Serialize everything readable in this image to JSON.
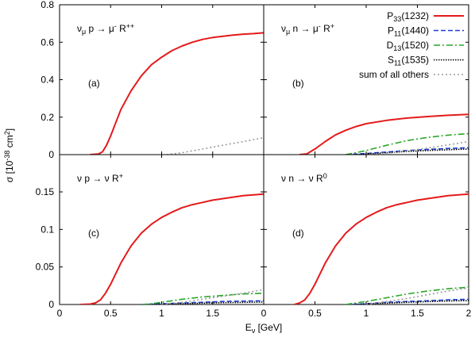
{
  "chart_data": [
    {
      "type": "line",
      "panel": "(a)",
      "reaction": {
        "base": "ν",
        "base_sub": "μ",
        "mid": " p → μ",
        "mid_sup": "-",
        "end": " R",
        "end_sup": "++"
      },
      "xlim": [
        0,
        2
      ],
      "ylim": [
        0,
        0.8
      ],
      "yticks": [
        "0",
        "0.2",
        "0.4",
        "0.6",
        "0.8"
      ],
      "series": [
        {
          "name": "P33(1232)",
          "x": [
            0.3,
            0.38,
            0.42,
            0.46,
            0.5,
            0.55,
            0.6,
            0.7,
            0.8,
            0.9,
            1.0,
            1.1,
            1.2,
            1.3,
            1.4,
            1.5,
            1.6,
            1.7,
            1.8,
            1.9,
            2.0
          ],
          "y": [
            0.0,
            0.003,
            0.015,
            0.05,
            0.1,
            0.17,
            0.24,
            0.34,
            0.42,
            0.48,
            0.52,
            0.555,
            0.58,
            0.6,
            0.615,
            0.625,
            0.632,
            0.638,
            0.643,
            0.646,
            0.65
          ]
        },
        {
          "name": "sum of all others",
          "x": [
            1.05,
            1.2,
            1.4,
            1.6,
            1.8,
            2.0
          ],
          "y": [
            0.0,
            0.01,
            0.03,
            0.05,
            0.07,
            0.09
          ]
        }
      ]
    },
    {
      "type": "line",
      "panel": "(b)",
      "reaction": {
        "base": "ν",
        "base_sub": "μ",
        "mid": " n → μ",
        "mid_sup": "-",
        "end": " R",
        "end_sup": "+"
      },
      "xlim": [
        0,
        2
      ],
      "ylim": [
        0,
        0.8
      ],
      "yticks": [],
      "series": [
        {
          "name": "P33(1232)",
          "x": [
            0.35,
            0.42,
            0.5,
            0.6,
            0.7,
            0.8,
            0.9,
            1.0,
            1.2,
            1.4,
            1.6,
            1.8,
            2.0
          ],
          "y": [
            0.0,
            0.004,
            0.03,
            0.07,
            0.105,
            0.13,
            0.15,
            0.165,
            0.183,
            0.195,
            0.203,
            0.21,
            0.215
          ]
        },
        {
          "name": "P11(1440)",
          "x": [
            0.8,
            1.0,
            1.2,
            1.4,
            1.6,
            1.8,
            2.0
          ],
          "y": [
            0.0,
            0.006,
            0.014,
            0.022,
            0.028,
            0.033,
            0.037
          ]
        },
        {
          "name": "D13(1520)",
          "x": [
            0.8,
            0.9,
            1.0,
            1.2,
            1.4,
            1.6,
            1.8,
            2.0
          ],
          "y": [
            0.0,
            0.01,
            0.022,
            0.05,
            0.075,
            0.092,
            0.104,
            0.112
          ]
        },
        {
          "name": "S11(1535)",
          "x": [
            0.9,
            1.0,
            1.2,
            1.4,
            1.6,
            1.8,
            2.0
          ],
          "y": [
            0.0,
            0.004,
            0.01,
            0.017,
            0.022,
            0.026,
            0.03
          ]
        },
        {
          "name": "sum of all others",
          "x": [
            1.0,
            1.2,
            1.4,
            1.6,
            1.8,
            2.0
          ],
          "y": [
            0.0,
            0.008,
            0.02,
            0.035,
            0.052,
            0.07
          ]
        }
      ]
    },
    {
      "type": "line",
      "panel": "(c)",
      "reaction": {
        "base": "ν",
        "base_sub": "",
        "mid": " p → ν",
        "mid_sup": "",
        "end": " R",
        "end_sup": "+"
      },
      "xlim": [
        0,
        2
      ],
      "ylim": [
        0,
        0.18
      ],
      "yticks": [
        "0",
        "0.05",
        "0.1",
        "0.15"
      ],
      "series": [
        {
          "name": "P33(1232)",
          "x": [
            0.2,
            0.3,
            0.35,
            0.4,
            0.45,
            0.5,
            0.6,
            0.7,
            0.8,
            0.9,
            1.0,
            1.1,
            1.2,
            1.3,
            1.4,
            1.5,
            1.6,
            1.7,
            1.8,
            1.9,
            2.0
          ],
          "y": [
            0.0,
            0.0005,
            0.002,
            0.006,
            0.015,
            0.027,
            0.055,
            0.078,
            0.095,
            0.107,
            0.116,
            0.123,
            0.129,
            0.133,
            0.136,
            0.139,
            0.141,
            0.143,
            0.145,
            0.146,
            0.147
          ]
        },
        {
          "name": "P11(1440)",
          "x": [
            0.8,
            1.0,
            1.2,
            1.4,
            1.6,
            1.8,
            2.0
          ],
          "y": [
            0.0,
            0.001,
            0.002,
            0.003,
            0.004,
            0.0045,
            0.005
          ]
        },
        {
          "name": "D13(1520)",
          "x": [
            0.8,
            0.9,
            1.0,
            1.2,
            1.4,
            1.6,
            1.8,
            2.0
          ],
          "y": [
            0.0,
            0.001,
            0.003,
            0.007,
            0.01,
            0.012,
            0.014,
            0.015
          ]
        },
        {
          "name": "S11(1535)",
          "x": [
            0.9,
            1.0,
            1.2,
            1.4,
            1.6,
            1.8,
            2.0
          ],
          "y": [
            0.0,
            0.0005,
            0.001,
            0.0018,
            0.0024,
            0.0029,
            0.0033
          ]
        },
        {
          "name": "sum of all others",
          "x": [
            1.0,
            1.2,
            1.4,
            1.6,
            1.8,
            2.0
          ],
          "y": [
            0.0,
            0.003,
            0.007,
            0.011,
            0.015,
            0.02
          ]
        }
      ]
    },
    {
      "type": "line",
      "panel": "(d)",
      "reaction": {
        "base": "ν",
        "base_sub": "",
        "mid": " n → ν",
        "mid_sup": "",
        "end": " R",
        "end_sup": "0"
      },
      "xlim": [
        0,
        2
      ],
      "ylim": [
        0,
        0.18
      ],
      "yticks": [],
      "series": [
        {
          "name": "P33(1232)",
          "x": [
            0.3,
            0.35,
            0.4,
            0.45,
            0.5,
            0.6,
            0.7,
            0.8,
            0.9,
            1.0,
            1.1,
            1.2,
            1.3,
            1.4,
            1.5,
            1.6,
            1.7,
            1.8,
            1.9,
            2.0
          ],
          "y": [
            0.0,
            0.002,
            0.006,
            0.015,
            0.027,
            0.055,
            0.078,
            0.095,
            0.107,
            0.116,
            0.123,
            0.129,
            0.133,
            0.136,
            0.139,
            0.141,
            0.143,
            0.145,
            0.146,
            0.147
          ]
        },
        {
          "name": "P11(1440)",
          "x": [
            0.8,
            1.0,
            1.2,
            1.4,
            1.6,
            1.8,
            2.0
          ],
          "y": [
            0.0,
            0.001,
            0.003,
            0.004,
            0.005,
            0.0062,
            0.007
          ]
        },
        {
          "name": "D13(1520)",
          "x": [
            0.8,
            0.9,
            1.0,
            1.2,
            1.4,
            1.6,
            1.8,
            2.0
          ],
          "y": [
            0.0,
            0.002,
            0.004,
            0.009,
            0.014,
            0.018,
            0.021,
            0.023
          ]
        },
        {
          "name": "S11(1535)",
          "x": [
            0.9,
            1.0,
            1.2,
            1.4,
            1.6,
            1.8,
            2.0
          ],
          "y": [
            0.0,
            0.0008,
            0.0018,
            0.003,
            0.0038,
            0.0046,
            0.0052
          ]
        },
        {
          "name": "sum of all others",
          "x": [
            1.0,
            1.2,
            1.4,
            1.6,
            1.8,
            2.0
          ],
          "y": [
            0.0,
            0.004,
            0.008,
            0.013,
            0.018,
            0.022
          ]
        }
      ]
    }
  ],
  "xticks": [
    "0",
    "0.5",
    "1",
    "1.5",
    "2"
  ],
  "xlabel": {
    "text": "E",
    "sub": "ν",
    "rest": " [GeV]"
  },
  "ylabel": {
    "text": "σ [10",
    "sup": "-38",
    "rest": " cm",
    "sup2": "2",
    "close": "]"
  },
  "legend": [
    {
      "label": "P",
      "sub": "33",
      "rest": "(1232)",
      "color": "#e41a1c",
      "dash": ""
    },
    {
      "label": "P",
      "sub": "11",
      "rest": "(1440)",
      "color": "#1f3fd0",
      "dash": "6,3"
    },
    {
      "label": "D",
      "sub": "13",
      "rest": "(1520)",
      "color": "#2aa62a",
      "dash": "8,3,2,3"
    },
    {
      "label": "S",
      "sub": "11",
      "rest": "(1535)",
      "color": "#000000",
      "dash": "1.5,1.5"
    },
    {
      "label": "sum of all others",
      "sub": "",
      "rest": "",
      "color": "#9a9a9a",
      "dash": "2,3"
    }
  ],
  "series_style": {
    "P33(1232)": {
      "color": "#e41a1c",
      "dash": ""
    },
    "P11(1440)": {
      "color": "#1f3fd0",
      "dash": "6,3"
    },
    "D13(1520)": {
      "color": "#2aa62a",
      "dash": "8,3,2,3"
    },
    "S11(1535)": {
      "color": "#000000",
      "dash": "1.5,1.5"
    },
    "sum of all others": {
      "color": "#9a9a9a",
      "dash": "2,3"
    }
  }
}
